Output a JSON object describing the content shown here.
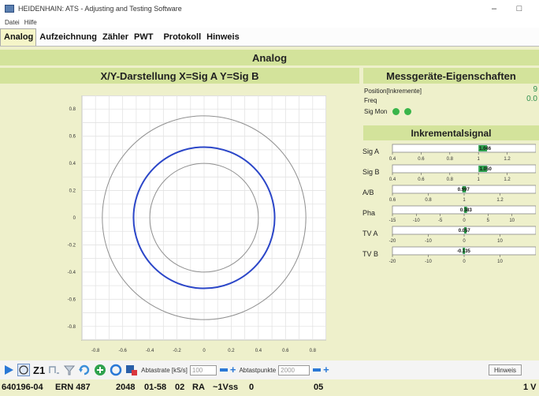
{
  "window": {
    "title": "HEIDENHAIN: ATS - Adjusting and Testing Software",
    "minimize_glyph": "–",
    "maximize_glyph": "□"
  },
  "menu": [
    "Datei",
    "Hilfe"
  ],
  "tabs": [
    {
      "label": "Analog",
      "active": true
    },
    {
      "label": "Aufzeichnung",
      "active": false
    },
    {
      "label": "Zähler",
      "active": false
    },
    {
      "label": "PWT",
      "active": false
    },
    {
      "label": "Protokoll",
      "active": false
    },
    {
      "label": "Hinweis",
      "active": false
    }
  ],
  "banner": "Analog",
  "xy_panel": {
    "title": "X/Y-Darstellung X=Sig A Y=Sig B"
  },
  "chart_data": {
    "type": "scatter",
    "title": "X/Y-Darstellung X=Sig A Y=Sig B",
    "xlim": [
      -0.9,
      0.9
    ],
    "ylim": [
      -0.9,
      0.9
    ],
    "x_ticks": [
      "-0.8",
      "-0.6",
      "-0.4",
      "-0.2",
      "0",
      "0.2",
      "0.4",
      "0.6",
      "0.8"
    ],
    "y_ticks": [
      "0.8",
      "0.6",
      "0.4",
      "0.2",
      "0",
      "-0.2",
      "-0.4",
      "-0.6",
      "-0.8"
    ],
    "grid": true,
    "reference_circles": [
      {
        "radius": 0.4,
        "color": "#909090"
      },
      {
        "radius": 0.75,
        "color": "#909090"
      }
    ],
    "series": [
      {
        "shape": "lissajous-circle",
        "radius": 0.52,
        "color": "#2b46c8"
      }
    ]
  },
  "properties": {
    "title": "Messgeräte-Eigenschaften",
    "position_label": "Position[Inkremente]",
    "position_value": "9",
    "freq_label": "Freq",
    "freq_value": "0.0",
    "sigmon_label": "Sig Mon",
    "led_color": "#39b54a"
  },
  "incremental": {
    "title": "Inkrementalsignal",
    "meters": [
      {
        "label": "Sig A",
        "value_text": "1.046",
        "value": 1.046,
        "min": 0.4,
        "max": 1.4,
        "ticks": [
          "0.4",
          "0.6",
          "0.8",
          "1",
          "1.2"
        ],
        "tick_values": [
          0.4,
          0.6,
          0.8,
          1,
          1.2
        ],
        "band": [
          1.0,
          1.06
        ]
      },
      {
        "label": "Sig B",
        "value_text": "1.050",
        "value": 1.05,
        "min": 0.4,
        "max": 1.4,
        "ticks": [
          "0.4",
          "0.6",
          "0.8",
          "1",
          "1.2"
        ],
        "tick_values": [
          0.4,
          0.6,
          0.8,
          1,
          1.2
        ],
        "band": [
          1.0,
          1.06
        ]
      },
      {
        "label": "A/B",
        "value_text": "0.997",
        "value": 0.997,
        "min": 0.6,
        "max": 1.4,
        "ticks": [
          "0.6",
          "0.8",
          "1",
          "1.2"
        ],
        "tick_values": [
          0.6,
          0.8,
          1,
          1.2
        ],
        "band": [
          0.99,
          1.01
        ]
      },
      {
        "label": "Pha",
        "value_text": "0.383",
        "value": 0.383,
        "min": -15,
        "max": 15,
        "ticks": [
          "-15",
          "-10",
          "-5",
          "0",
          "5",
          "10"
        ],
        "tick_values": [
          -15,
          -10,
          -5,
          0,
          5,
          10
        ],
        "band": [
          0,
          0.6
        ]
      },
      {
        "label": "TV A",
        "value_text": "0.057",
        "value": 0.057,
        "min": -20,
        "max": 20,
        "ticks": [
          "-20",
          "-10",
          "0",
          "10"
        ],
        "tick_values": [
          -20,
          -10,
          0,
          10
        ],
        "band": [
          0,
          0.4
        ]
      },
      {
        "label": "TV B",
        "value_text": "-0.135",
        "value": -0.135,
        "min": -20,
        "max": 20,
        "ticks": [
          "-20",
          "-10",
          "0",
          "10"
        ],
        "tick_values": [
          -20,
          -10,
          0,
          10
        ],
        "band": [
          -0.4,
          0
        ]
      }
    ],
    "band_color": "#2fa24e"
  },
  "toolbar": {
    "z1_label": "Z1",
    "sample_rate_label": "Abtastrate [kS/s]",
    "sample_rate_value": "100",
    "sample_points_label": "Abtastpunkte",
    "sample_points_value": "2000",
    "hinweis_label": "Hinweis"
  },
  "status": {
    "id": "640196-04",
    "model": "ERN 487",
    "lines": "2048",
    "code1": "01-58",
    "code2": "02",
    "ra": "RA",
    "signal": "~1Vss",
    "zero": "0",
    "num": "05",
    "right": "1 V"
  }
}
